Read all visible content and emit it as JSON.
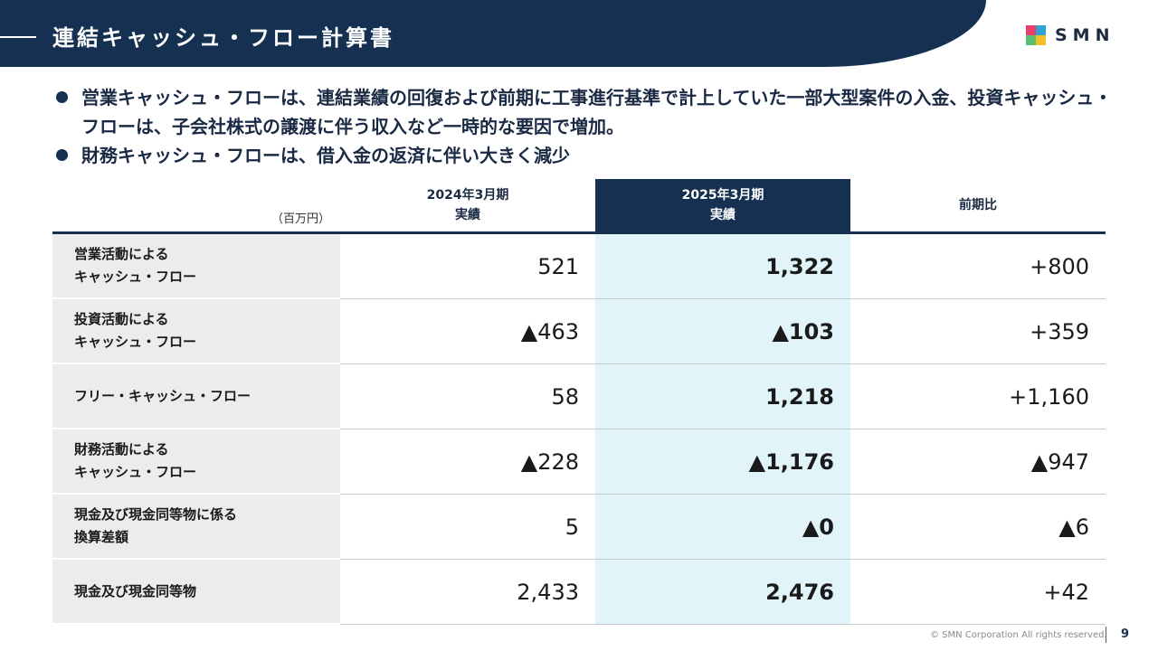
{
  "header": {
    "title": "連結キャッシュ・フロー計算書",
    "logo_text": "SMN",
    "logo_colors": [
      "#e83e6c",
      "#2fa3d9",
      "#5bbd6e",
      "#f3c02c"
    ]
  },
  "bullets": [
    "営業キャッシュ・フローは、連結業績の回復および前期に工事進行基準で計上していた一部大型案件の入金、投資キャッシュ・フローは、子会社株式の譲渡に伴う収入など一時的な要因で増加。",
    "財務キャッシュ・フローは、借入金の返済に伴い大きく減少"
  ],
  "table": {
    "unit": "（百万円）",
    "columns": [
      {
        "line1": "2024年3月期",
        "line2": "実績"
      },
      {
        "line1": "2025年3月期",
        "line2": "実績"
      },
      {
        "line1": "前期比",
        "line2": ""
      }
    ],
    "rows": [
      {
        "label": "営業活動による\nキャッシュ・フロー",
        "v2024": "521",
        "v2025": "1,322",
        "diff": "+800"
      },
      {
        "label": "投資活動による\nキャッシュ・フロー",
        "v2024": "▲463",
        "v2025": "▲103",
        "diff": "+359"
      },
      {
        "label": "フリー・キャッシュ・フロー",
        "v2024": "58",
        "v2025": "1,218",
        "diff": "+1,160"
      },
      {
        "label": "財務活動による\nキャッシュ・フロー",
        "v2024": "▲228",
        "v2025": "▲1,176",
        "diff": "▲947"
      },
      {
        "label": "現金及び現金同等物に係る\n換算差額",
        "v2024": "5",
        "v2025": "▲0",
        "diff": "▲6"
      },
      {
        "label": "現金及び現金同等物",
        "v2024": "2,433",
        "v2025": "2,476",
        "diff": "+42"
      }
    ]
  },
  "footer": {
    "copyright": "© SMN Corporation All rights reserved.",
    "page_number": "9"
  }
}
